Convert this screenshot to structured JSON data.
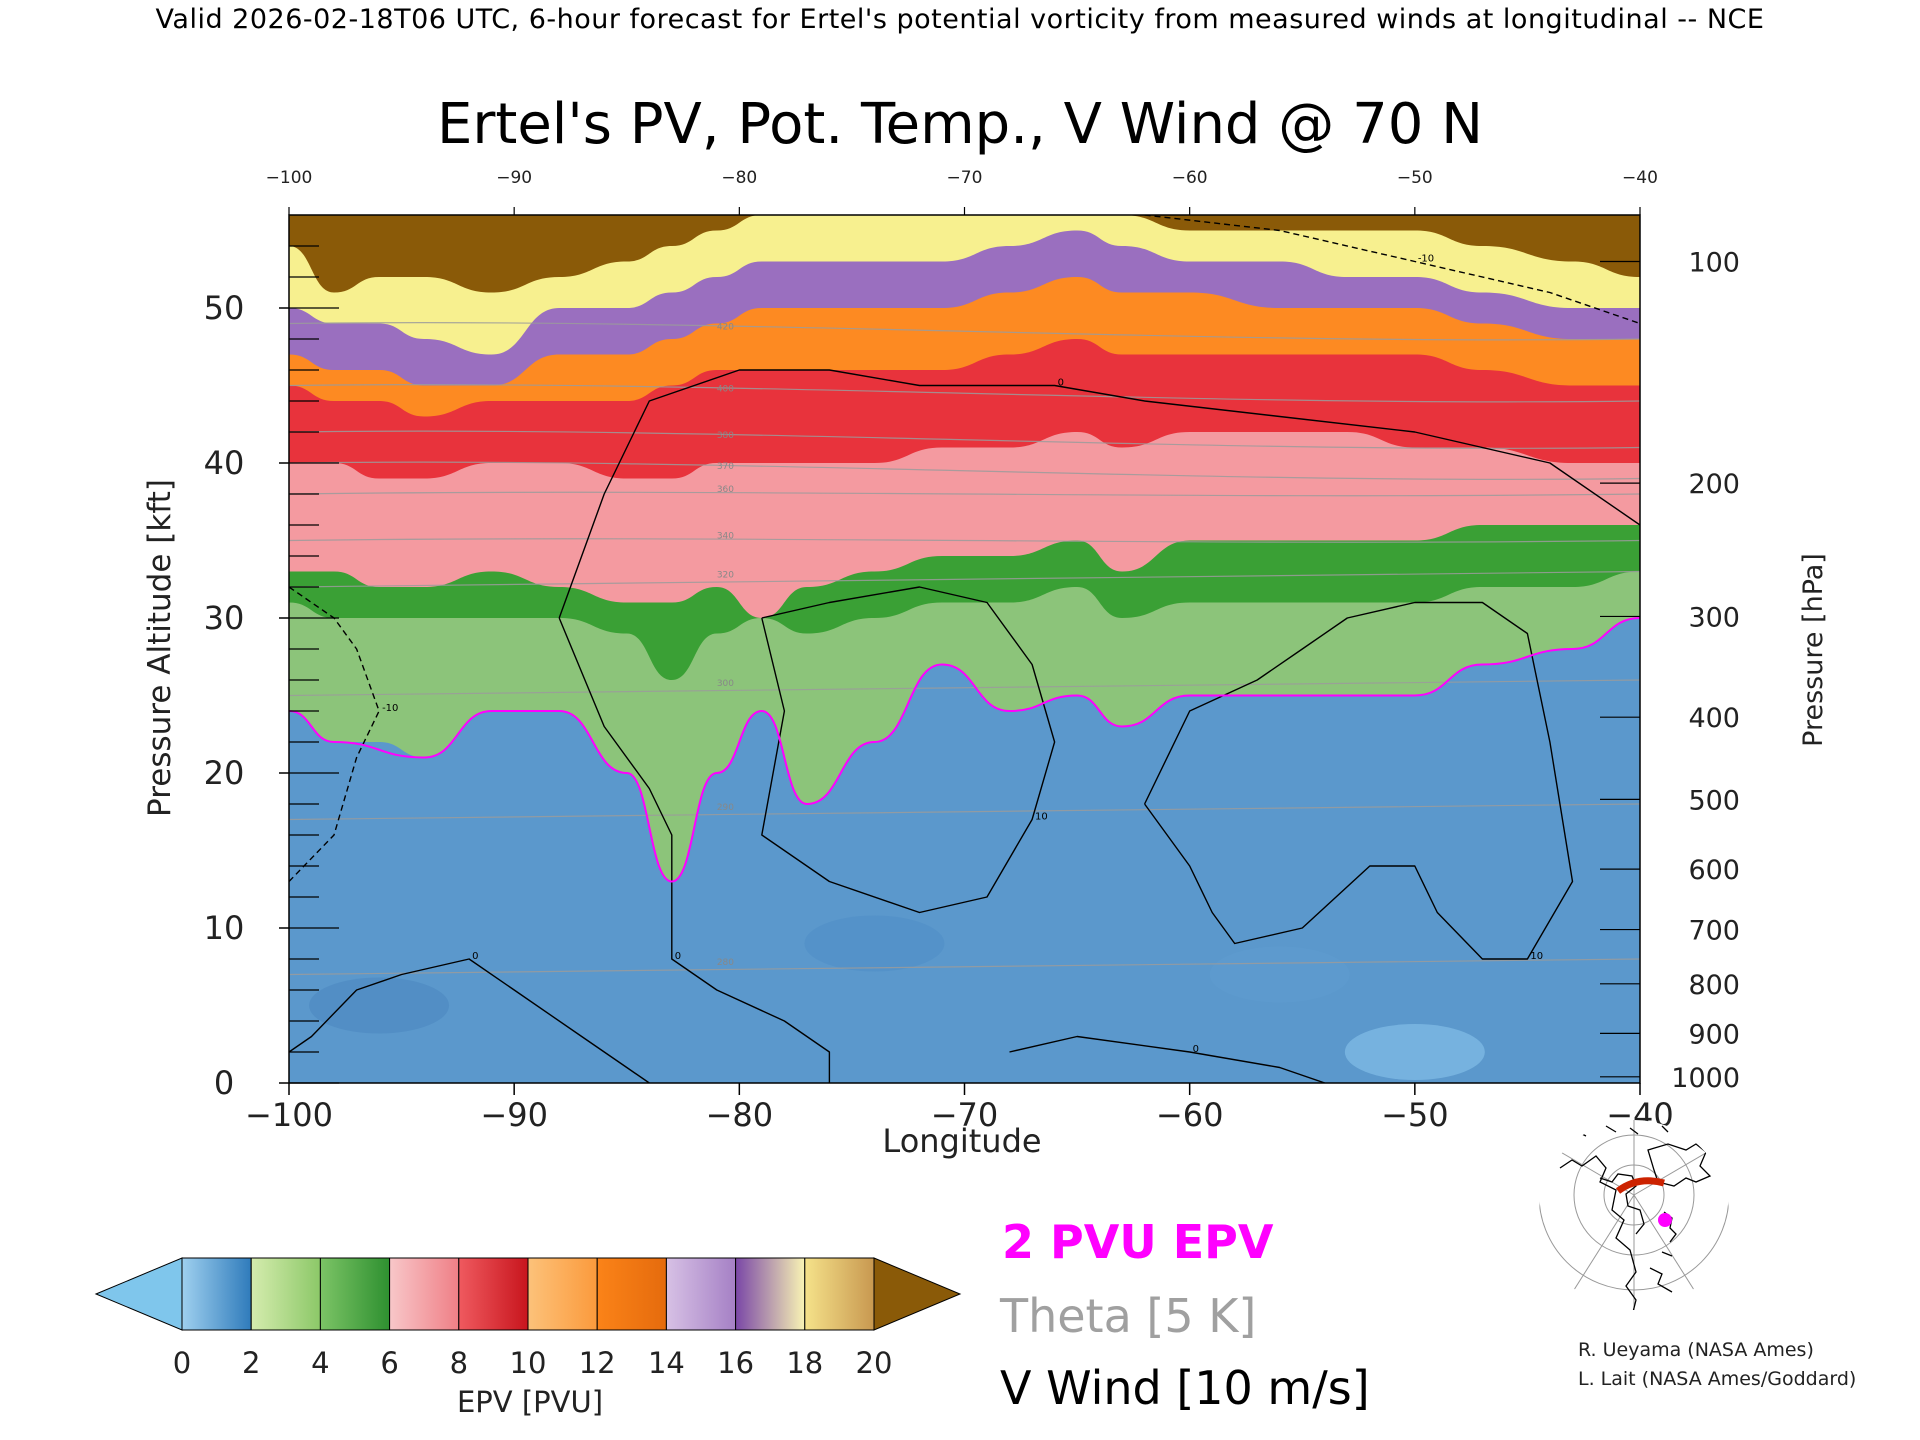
{
  "header": {
    "valid_line": "Valid 2026-02-18T06 UTC, 6-hour forecast for Ertel's potential vorticity from measured winds at longitudinal -- NCE"
  },
  "chart_data": {
    "type": "heatmap",
    "title": "Ertel's PV, Pot. Temp., V Wind @ 70 N",
    "xlabel": "Longitude",
    "ylabel_left": "Pressure Altitude [kft]",
    "ylabel_right": "Pressure [hPa]",
    "xlim": [
      -100,
      -40
    ],
    "ylim": [
      0,
      56
    ],
    "x_ticks": [
      -100,
      -90,
      -80,
      -70,
      -60,
      -50,
      -40
    ],
    "x_tick_labels": [
      "−100",
      "−90",
      "−80",
      "−70",
      "−60",
      "−50",
      "−40"
    ],
    "top_ticks": [
      -100,
      -90,
      -80,
      -70,
      -60,
      -50,
      -40
    ],
    "top_tick_labels": [
      "−100",
      "−90",
      "−80",
      "−70",
      "−60",
      "−50",
      "−40"
    ],
    "y_ticks": [
      0,
      10,
      20,
      30,
      40,
      50
    ],
    "y_tick_labels": [
      "0",
      "10",
      "20",
      "30",
      "40",
      "50"
    ],
    "pressure_ticks": [
      {
        "hPa": 100,
        "label": "100",
        "kft": 53.0
      },
      {
        "hPa": 200,
        "label": "200",
        "kft": 38.7
      },
      {
        "hPa": 300,
        "label": "300",
        "kft": 30.1
      },
      {
        "hPa": 400,
        "label": "400",
        "kft": 23.6
      },
      {
        "hPa": 500,
        "label": "500",
        "kft": 18.3
      },
      {
        "hPa": 600,
        "label": "600",
        "kft": 13.8
      },
      {
        "hPa": 700,
        "label": "700",
        "kft": 9.9
      },
      {
        "hPa": 800,
        "label": "800",
        "kft": 6.4
      },
      {
        "hPa": 900,
        "label": "900",
        "kft": 3.2
      },
      {
        "hPa": 1000,
        "label": "1000",
        "kft": 0.4
      }
    ],
    "epv_bands_kft": [
      {
        "lon": -100,
        "b2": 24,
        "b5": 31,
        "b7": 33,
        "b10": 40,
        "b12": 45,
        "b14": 47,
        "b17": 50,
        "b19": 54
      },
      {
        "lon": -98,
        "b2": 22,
        "b5": 30,
        "b7": 33,
        "b10": 40,
        "b12": 44,
        "b14": 46,
        "b17": 49,
        "b19": 51
      },
      {
        "lon": -96,
        "b2": 22,
        "b5": 30,
        "b7": 32,
        "b10": 39,
        "b12": 44,
        "b14": 46,
        "b17": 49,
        "b19": 52
      },
      {
        "lon": -94,
        "b2": 21,
        "b5": 30,
        "b7": 32,
        "b10": 39,
        "b12": 43,
        "b14": 45,
        "b17": 48,
        "b19": 52
      },
      {
        "lon": -91,
        "b2": 24,
        "b5": 30,
        "b7": 33,
        "b10": 40,
        "b12": 44,
        "b14": 45,
        "b17": 47,
        "b19": 51
      },
      {
        "lon": -88,
        "b2": 24,
        "b5": 30,
        "b7": 32,
        "b10": 40,
        "b12": 44,
        "b14": 47,
        "b17": 50,
        "b19": 52
      },
      {
        "lon": -85,
        "b2": 20,
        "b5": 29,
        "b7": 31,
        "b10": 39,
        "b12": 44,
        "b14": 47,
        "b17": 50,
        "b19": 53
      },
      {
        "lon": -83,
        "b2": 13,
        "b5": 26,
        "b7": 31,
        "b10": 39,
        "b12": 45,
        "b14": 48,
        "b17": 51,
        "b19": 54
      },
      {
        "lon": -81,
        "b2": 20,
        "b5": 29,
        "b7": 32,
        "b10": 40,
        "b12": 46,
        "b14": 49,
        "b17": 52,
        "b19": 55
      },
      {
        "lon": -79,
        "b2": 24,
        "b5": 30,
        "b7": 30,
        "b10": 40,
        "b12": 46,
        "b14": 50,
        "b17": 53,
        "b19": 56
      },
      {
        "lon": -77,
        "b2": 18,
        "b5": 29,
        "b7": 32,
        "b10": 40,
        "b12": 46,
        "b14": 50,
        "b17": 53,
        "b19": 56
      },
      {
        "lon": -74,
        "b2": 22,
        "b5": 30,
        "b7": 33,
        "b10": 40,
        "b12": 46,
        "b14": 50,
        "b17": 53,
        "b19": 56
      },
      {
        "lon": -71,
        "b2": 27,
        "b5": 31,
        "b7": 34,
        "b10": 41,
        "b12": 46,
        "b14": 50,
        "b17": 53,
        "b19": 56
      },
      {
        "lon": -68,
        "b2": 24,
        "b5": 31,
        "b7": 34,
        "b10": 41,
        "b12": 47,
        "b14": 51,
        "b17": 54,
        "b19": 56
      },
      {
        "lon": -65,
        "b2": 25,
        "b5": 32,
        "b7": 35,
        "b10": 42,
        "b12": 48,
        "b14": 52,
        "b17": 55,
        "b19": 56
      },
      {
        "lon": -63,
        "b2": 23,
        "b5": 30,
        "b7": 33,
        "b10": 41,
        "b12": 47,
        "b14": 51,
        "b17": 54,
        "b19": 56
      },
      {
        "lon": -60,
        "b2": 25,
        "b5": 31,
        "b7": 35,
        "b10": 42,
        "b12": 47,
        "b14": 51,
        "b17": 53,
        "b19": 55
      },
      {
        "lon": -56,
        "b2": 25,
        "b5": 31,
        "b7": 35,
        "b10": 42,
        "b12": 47,
        "b14": 50,
        "b17": 53,
        "b19": 55
      },
      {
        "lon": -53,
        "b2": 25,
        "b5": 31,
        "b7": 35,
        "b10": 42,
        "b12": 47,
        "b14": 50,
        "b17": 52,
        "b19": 55
      },
      {
        "lon": -50,
        "b2": 25,
        "b5": 31,
        "b7": 35,
        "b10": 41,
        "b12": 47,
        "b14": 50,
        "b17": 52,
        "b19": 55
      },
      {
        "lon": -47,
        "b2": 27,
        "b5": 32,
        "b7": 36,
        "b10": 41,
        "b12": 46,
        "b14": 49,
        "b17": 51,
        "b19": 54
      },
      {
        "lon": -43,
        "b2": 28,
        "b5": 32,
        "b7": 36,
        "b10": 40,
        "b12": 45,
        "b14": 48,
        "b17": 50,
        "b19": 53
      },
      {
        "lon": -40,
        "b2": 30,
        "b5": 33,
        "b7": 36,
        "b10": 40,
        "b12": 45,
        "b14": 48,
        "b17": 50,
        "b19": 52
      }
    ],
    "two_pvu_contour": [
      [
        -100,
        24
      ],
      [
        -98,
        22
      ],
      [
        -94,
        21
      ],
      [
        -91,
        24
      ],
      [
        -88,
        24
      ],
      [
        -85,
        20
      ],
      [
        -83,
        13
      ],
      [
        -81,
        20
      ],
      [
        -79,
        24
      ],
      [
        -77,
        18
      ],
      [
        -74,
        22
      ],
      [
        -71,
        27
      ],
      [
        -68,
        24
      ],
      [
        -65,
        25
      ],
      [
        -63,
        23
      ],
      [
        -60,
        25
      ],
      [
        -56,
        25
      ],
      [
        -53,
        25
      ],
      [
        -50,
        25
      ],
      [
        -47,
        27
      ],
      [
        -43,
        28
      ],
      [
        -40,
        30
      ]
    ],
    "theta_levels": [
      {
        "value": "280",
        "kft_start": 7,
        "kft_end": 8
      },
      {
        "value": "290",
        "kft_start": 17,
        "kft_end": 18
      },
      {
        "value": "300",
        "kft_start": 25,
        "kft_end": 26
      },
      {
        "value": "320",
        "kft_start": 32,
        "kft_end": 33
      },
      {
        "value": "340",
        "kft_start": 35,
        "kft_end": 35
      },
      {
        "value": "360",
        "kft_start": 38,
        "kft_end": 38
      },
      {
        "value": "370",
        "kft_start": 40,
        "kft_end": 39
      },
      {
        "value": "380",
        "kft_start": 42,
        "kft_end": 41
      },
      {
        "value": "400",
        "kft_start": 45,
        "kft_end": 44
      },
      {
        "value": "420",
        "kft_start": 49,
        "kft_end": 48
      }
    ],
    "v_wind_contours": [
      {
        "label": "0",
        "style": "solid",
        "points": [
          [
            -88,
            30
          ],
          [
            -86,
            38
          ],
          [
            -84,
            44
          ],
          [
            -80,
            46
          ],
          [
            -76,
            46
          ],
          [
            -72,
            45
          ],
          [
            -66,
            45
          ],
          [
            -62,
            44
          ],
          [
            -56,
            43
          ],
          [
            -50,
            42
          ],
          [
            -44,
            40
          ],
          [
            -40,
            36
          ]
        ]
      },
      {
        "label": "0",
        "style": "solid",
        "points": [
          [
            -88,
            30
          ],
          [
            -86,
            23
          ],
          [
            -84,
            19
          ],
          [
            -83,
            16
          ],
          [
            -83,
            8
          ],
          [
            -81,
            6
          ],
          [
            -78,
            4
          ],
          [
            -76,
            2
          ],
          [
            -76,
            0
          ]
        ]
      },
      {
        "label": "0",
        "style": "solid",
        "points": [
          [
            -100,
            2
          ],
          [
            -99,
            3
          ],
          [
            -97,
            6
          ],
          [
            -95,
            7
          ],
          [
            -92,
            8
          ],
          [
            -90,
            6
          ],
          [
            -87,
            3
          ],
          [
            -85,
            1
          ],
          [
            -84,
            0
          ]
        ]
      },
      {
        "label": "10",
        "style": "solid",
        "points": [
          [
            -79,
            30
          ],
          [
            -76,
            31
          ],
          [
            -72,
            32
          ],
          [
            -69,
            31
          ],
          [
            -67,
            27
          ],
          [
            -66,
            22
          ],
          [
            -67,
            17
          ],
          [
            -69,
            12
          ],
          [
            -72,
            11
          ],
          [
            -76,
            13
          ],
          [
            -79,
            16
          ],
          [
            -78,
            24
          ],
          [
            -79,
            30
          ]
        ]
      },
      {
        "label": "10",
        "style": "solid",
        "points": [
          [
            -62,
            18
          ],
          [
            -60,
            24
          ],
          [
            -57,
            26
          ],
          [
            -55,
            28
          ],
          [
            -53,
            30
          ],
          [
            -50,
            31
          ],
          [
            -47,
            31
          ],
          [
            -45,
            29
          ],
          [
            -44,
            22
          ],
          [
            -43,
            13
          ],
          [
            -45,
            8
          ],
          [
            -47,
            8
          ],
          [
            -49,
            11
          ],
          [
            -50,
            14
          ],
          [
            -52,
            14
          ],
          [
            -55,
            10
          ],
          [
            -58,
            9
          ],
          [
            -59,
            11
          ],
          [
            -60,
            14
          ],
          [
            -62,
            18
          ]
        ]
      },
      {
        "label": "0",
        "style": "solid",
        "points": [
          [
            -68,
            2
          ],
          [
            -65,
            3
          ],
          [
            -60,
            2
          ],
          [
            -56,
            1
          ],
          [
            -54,
            0
          ]
        ]
      },
      {
        "label": "-10",
        "style": "dashed",
        "points": [
          [
            -100,
            13
          ],
          [
            -98,
            16
          ],
          [
            -97,
            21
          ],
          [
            -96,
            24
          ],
          [
            -97,
            28
          ],
          [
            -98,
            30
          ],
          [
            -100,
            32
          ]
        ]
      },
      {
        "label": "-10",
        "style": "dashed",
        "points": [
          [
            -62,
            56
          ],
          [
            -56,
            55
          ],
          [
            -50,
            53
          ],
          [
            -44,
            51
          ],
          [
            -40,
            49
          ]
        ]
      }
    ],
    "colorbar": {
      "label": "EPV [PVU]",
      "ticks": [
        "0",
        "2",
        "4",
        "6",
        "8",
        "10",
        "12",
        "14",
        "16",
        "18",
        "20"
      ]
    },
    "legend": {
      "pv": "2 PVU EPV",
      "theta": "Theta [5 K]",
      "wind": "V Wind [10 m/s]"
    }
  },
  "colors": {
    "pv_contour": "#ff00ff",
    "theta": "#9b9b9b",
    "wind": "#000000",
    "legend_pv": "#ff00ff",
    "legend_theta": "#a0a0a0",
    "legend_wind": "#000000"
  },
  "map_inset": {
    "marker_color": "#ff00ff",
    "track_color": "#cc2200"
  },
  "credits": {
    "line1": "R. Ueyama (NASA Ames)",
    "line2": "L. Lait (NASA Ames/Goddard)"
  }
}
